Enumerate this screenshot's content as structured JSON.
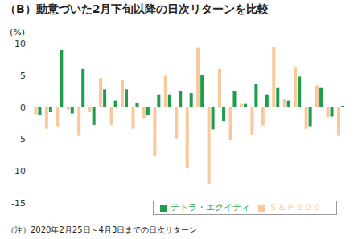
{
  "chart_data": {
    "type": "bar",
    "title": "（B）動意づいた2月下旬以降の日次リターンを比較",
    "y_label": "(%)",
    "annotations": [
      "（注）2020年2月25日～4月3日までの日次リターン"
    ],
    "categories": [
      null,
      null,
      null,
      null,
      null,
      null,
      null,
      null,
      null,
      null,
      null,
      null,
      null,
      null,
      null,
      null,
      null,
      null,
      null,
      null,
      null,
      null,
      null,
      null,
      null,
      null,
      null,
      null,
      null
    ],
    "series": [
      {
        "name": "Ｓ＆Ｐ５００",
        "color": "#f9c89b",
        "values": [
          -1.1,
          -3.4,
          -3.0,
          -0.4,
          -4.4,
          -0.8,
          4.6,
          -2.8,
          4.2,
          -3.4,
          -1.7,
          -7.6,
          4.9,
          -4.9,
          -9.5,
          9.3,
          -12.0,
          6.0,
          -5.2,
          0.5,
          -4.3,
          -2.9,
          9.4,
          1.2,
          6.2,
          -3.4,
          3.4,
          -1.6,
          -4.4
        ]
      },
      {
        "name": "テトラ・エクイティ",
        "color": "#1e9e4a",
        "values": [
          -1.3,
          -0.8,
          9.0,
          -1.0,
          6.0,
          -2.8,
          2.8,
          1.0,
          2.8,
          0.6,
          -1.2,
          2.0,
          2.0,
          2.5,
          2.2,
          5.0,
          -3.5,
          -2.2,
          2.5,
          0.5,
          3.6,
          2.0,
          3.0,
          1.0,
          4.8,
          -3.0,
          3.0,
          -1.5,
          0.2
        ]
      }
    ],
    "ylim": [
      -15,
      10
    ],
    "yticks": [
      -15,
      -10,
      -5,
      0,
      5,
      10
    ],
    "grid": false,
    "legend": "bottom-right"
  }
}
